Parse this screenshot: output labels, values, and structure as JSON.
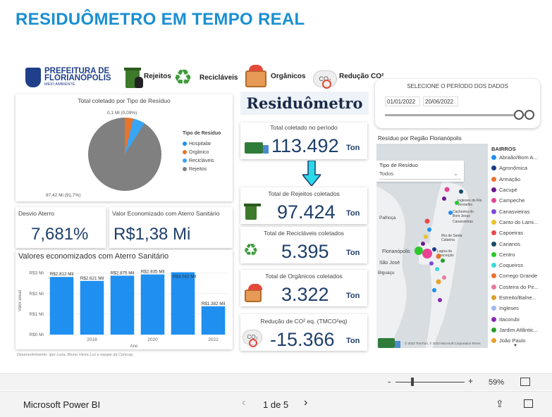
{
  "header": {
    "title": "RESIDUÔMETRO EM TEMPO REAL"
  },
  "logo": {
    "line1": "PREFEITURA DE",
    "line2": "FLORIANÓPOLIS",
    "line3": "MEIO AMBIENTE"
  },
  "categories": [
    {
      "label": "Rejeitos",
      "icon": "trash-bin-icon"
    },
    {
      "label": "Recicláveis",
      "icon": "recycle-icon"
    },
    {
      "label": "Orgânicos",
      "icon": "crate-icon"
    },
    {
      "label": "Redução CO²",
      "icon": "co2-icon"
    }
  ],
  "pie": {
    "title": "Total coletado por Tipo de Resíduo",
    "label_top": "0,1 Mi (0,09%)",
    "label_bottom": "97,42 Mi (91,7%)",
    "legend_title": "Tipo de Resíduo",
    "legend": [
      {
        "name": "Hospitalar",
        "color": "#1f8ff0"
      },
      {
        "name": "Orgânico",
        "color": "#e8732a"
      },
      {
        "name": "Recicláveis",
        "color": "#38a5f5"
      },
      {
        "name": "Rejeitos",
        "color": "#808080"
      }
    ]
  },
  "desvio": {
    "title": "Desvio Aterro",
    "value": "7,681%"
  },
  "economizado": {
    "title": "Valor Economizado com Aterro Sanitário",
    "value": "R$1,38 Mi"
  },
  "brand": {
    "title": "Residuômetro"
  },
  "kpis": [
    {
      "title": "Total coletado no período",
      "value": "113.492",
      "unit": "Ton",
      "icon": "truck-icon"
    },
    {
      "title": "Total de Rejeitos coletados",
      "value": "97.424",
      "unit": "Ton",
      "icon": "trash-bin-icon"
    },
    {
      "title": "Total de Recicláveis coletados",
      "value": "5.395",
      "unit": "Ton",
      "icon": "recycle-icon"
    },
    {
      "title": "Total de Orgânicos coletados",
      "value": "3.322",
      "unit": "Ton",
      "icon": "crate-icon"
    },
    {
      "title": "Redução de CO² eq. (TMCO²eq)",
      "value": "-15.366",
      "unit": "Ton",
      "icon": "co2-icon"
    }
  ],
  "date_filter": {
    "title": "SELECIONE O PERÍODO DOS DADOS",
    "start": "01/01/2022",
    "end": "20/06/2022"
  },
  "map": {
    "title": "Resíduo por Região Florianópolis",
    "filter_label": "Tipo de Resíduo",
    "filter_value": "Todos",
    "labels": [
      "Ingleses do Rio Vermelho",
      "Cachoeira do Bom Jesus",
      "Canasvieiras",
      "Ilha de Santa Catarina",
      "Florianópolis",
      "Lagoa da Conceição",
      "Palhoça",
      "São José",
      "Biguaçu"
    ],
    "attribution": "© 2022 TomTom, © 2022 Microsoft Corporation  Terms",
    "legend_title": "BAIRROS",
    "legend": [
      {
        "name": "Abraão/Bom A...",
        "color": "#1f8ff0"
      },
      {
        "name": "Agronômica",
        "color": "#1a3a8a"
      },
      {
        "name": "Armação",
        "color": "#e8732a"
      },
      {
        "name": "Cacupé",
        "color": "#6a1a8a"
      },
      {
        "name": "Campeche",
        "color": "#e84393"
      },
      {
        "name": "Canasvieiras",
        "color": "#7b4ad8"
      },
      {
        "name": "Canto do Lami...",
        "color": "#e8c22a"
      },
      {
        "name": "Capoeiras",
        "color": "#e84a4a"
      },
      {
        "name": "Carianos",
        "color": "#1a4a6a"
      },
      {
        "name": "Centro",
        "color": "#2ac82a"
      },
      {
        "name": "Coqueiros",
        "color": "#3ad8d8"
      },
      {
        "name": "Corrego Grande",
        "color": "#e8732a"
      },
      {
        "name": "Costeira do Pir...",
        "color": "#e87aa0"
      },
      {
        "name": "Estreito/Balne...",
        "color": "#d8a02a"
      },
      {
        "name": "Ingleses",
        "color": "#a0b8f0"
      },
      {
        "name": "Itacorubi",
        "color": "#8a2ab8"
      },
      {
        "name": "Jardim Atlântic...",
        "color": "#2aa02a"
      },
      {
        "name": "João Paulo",
        "color": "#e8a02a"
      }
    ]
  },
  "bar_chart": {
    "title": "Valores economizados com Aterro Sanitário",
    "ylabel": "Valor anual",
    "xlabel": "Ano",
    "credit": "Desenvolvimento: Igor Luna, Bruno Vieira Luz e equipe da Comcap"
  },
  "chart_data": {
    "type": "bar",
    "categories": [
      "2017",
      "2018",
      "2019",
      "2020",
      "2021",
      "2022"
    ],
    "values": [
      2.812,
      2.621,
      2.875,
      2.935,
      3.042,
      1.382
    ],
    "data_labels": [
      "R$2.812 Mil",
      "R$2.621 Mil",
      "R$2.875 Mil",
      "R$2.935 Mil",
      "R$3.042 Mil",
      "R$1.382 Mil"
    ],
    "x_ticks": [
      "2018",
      "2020",
      "2022"
    ],
    "y_ticks": [
      "R$0 Mi",
      "R$1 Mi",
      "R$2 Mi",
      "R$3 Mi"
    ],
    "ylim": [
      0,
      3.3
    ],
    "xlabel": "Ano",
    "ylabel": "Valor anual",
    "color": "#1f8ff0"
  },
  "zoom": {
    "minus": "-",
    "plus": "+",
    "level": "59%"
  },
  "footer": {
    "app": "Microsoft Power BI",
    "page": "1 de 5"
  }
}
